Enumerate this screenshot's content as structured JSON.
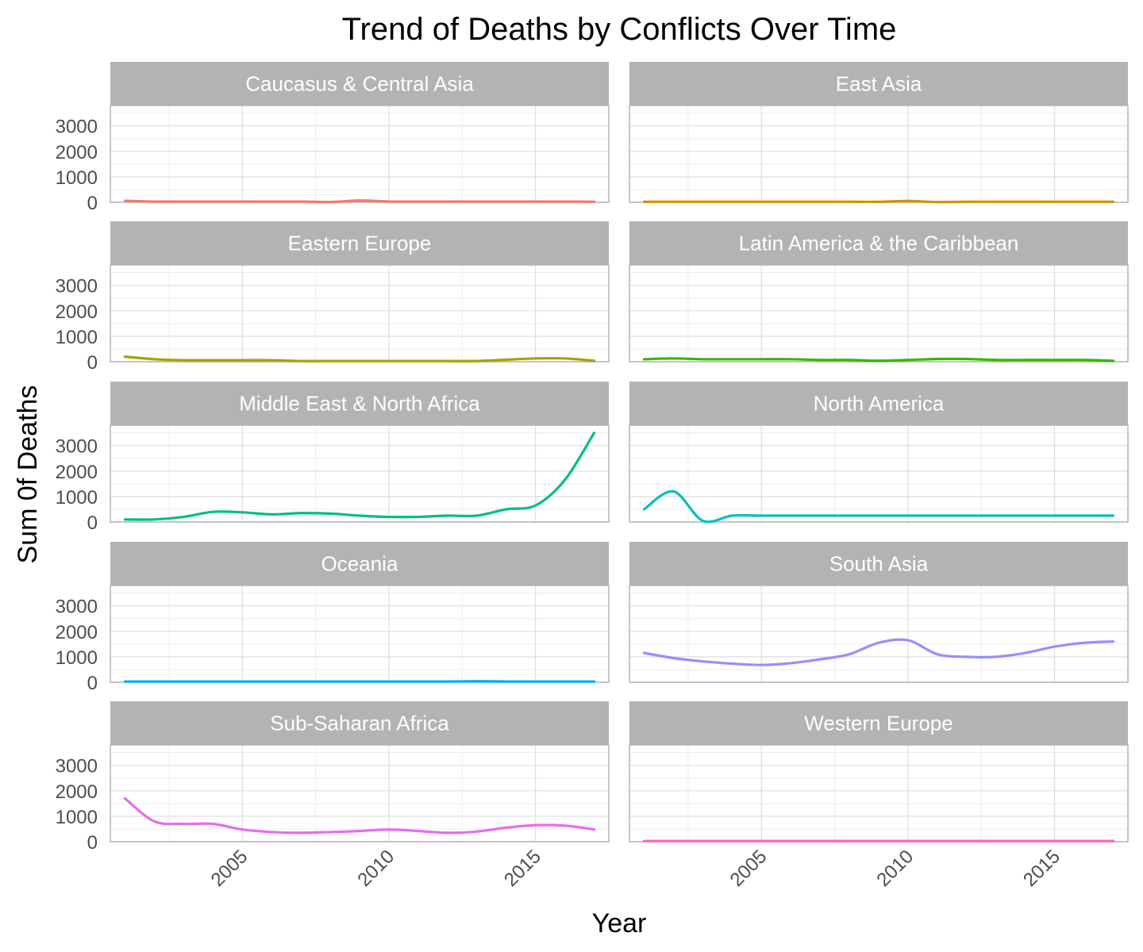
{
  "chart_data": {
    "type": "line",
    "title": "Trend of Deaths by Conflicts Over Time",
    "xlabel": "Year",
    "ylabel": "Sum 0f Deaths",
    "xlim": [
      2000.5,
      2017.5
    ],
    "ylim": [
      0,
      3800
    ],
    "x_ticks": [
      2005,
      2010,
      2015
    ],
    "y_ticks": [
      0,
      1000,
      2000,
      3000
    ],
    "x_tick_labels": [
      "2005",
      "2010",
      "2015"
    ],
    "y_tick_labels": [
      "0",
      "1000",
      "2000",
      "3000"
    ],
    "x": [
      2001,
      2002,
      2003,
      2004,
      2005,
      2006,
      2007,
      2008,
      2009,
      2010,
      2011,
      2012,
      2013,
      2014,
      2015,
      2016,
      2017
    ],
    "facets": [
      {
        "name": "Caucasus & Central Asia",
        "color": "#F8766D",
        "values": [
          60,
          30,
          30,
          30,
          30,
          30,
          30,
          10,
          70,
          30,
          30,
          30,
          30,
          30,
          30,
          30,
          20
        ]
      },
      {
        "name": "East Asia",
        "color": "#D89000",
        "values": [
          20,
          20,
          20,
          20,
          20,
          20,
          20,
          20,
          20,
          50,
          10,
          20,
          20,
          20,
          20,
          20,
          20
        ]
      },
      {
        "name": "Eastern Europe",
        "color": "#A3A500",
        "values": [
          200,
          100,
          60,
          60,
          60,
          60,
          30,
          30,
          30,
          30,
          30,
          30,
          30,
          80,
          130,
          130,
          40
        ]
      },
      {
        "name": "Latin America & the Caribbean",
        "color": "#39B600",
        "values": [
          100,
          130,
          100,
          100,
          100,
          100,
          70,
          70,
          40,
          70,
          110,
          110,
          70,
          70,
          70,
          70,
          40
        ]
      },
      {
        "name": "Middle East & North Africa",
        "color": "#00BF7D",
        "values": [
          100,
          100,
          200,
          400,
          380,
          300,
          350,
          330,
          250,
          200,
          200,
          250,
          250,
          500,
          650,
          1650,
          3500
        ]
      },
      {
        "name": "North America",
        "color": "#00BFC4",
        "values": [
          500,
          1200,
          50,
          250,
          250,
          250,
          250,
          250,
          250,
          250,
          250,
          250,
          250,
          250,
          250,
          250,
          250
        ]
      },
      {
        "name": "Oceania",
        "color": "#00B0F6",
        "values": [
          30,
          30,
          30,
          30,
          30,
          30,
          30,
          30,
          30,
          30,
          30,
          30,
          40,
          30,
          30,
          30,
          30
        ]
      },
      {
        "name": "South Asia",
        "color": "#9590FF",
        "values": [
          1150,
          950,
          820,
          730,
          680,
          750,
          900,
          1100,
          1550,
          1650,
          1100,
          1000,
          1000,
          1150,
          1400,
          1550,
          1600
        ]
      },
      {
        "name": "Sub-Saharan Africa",
        "color": "#E76BF3",
        "values": [
          1700,
          800,
          700,
          700,
          480,
          380,
          350,
          380,
          420,
          480,
          420,
          350,
          400,
          550,
          650,
          630,
          480
        ]
      },
      {
        "name": "Western Europe",
        "color": "#FF62BC",
        "values": [
          30,
          30,
          30,
          30,
          30,
          30,
          30,
          30,
          30,
          30,
          30,
          30,
          30,
          30,
          30,
          30,
          30
        ]
      }
    ]
  }
}
